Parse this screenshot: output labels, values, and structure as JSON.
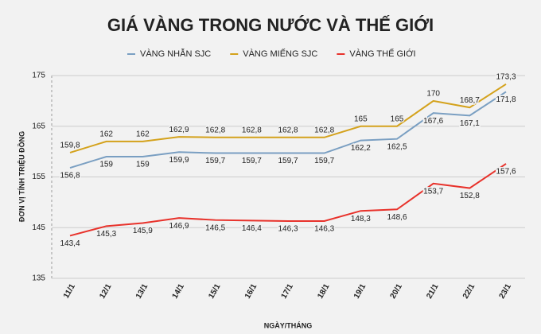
{
  "chart_data": {
    "type": "line",
    "title": "GIÁ VÀNG TRONG NƯỚC VÀ THẾ GIỚI",
    "y_label": "ĐƠN VỊ TÍNH TRIỆU ĐỒNG",
    "x_label": "NGÀY/THÁNG",
    "categories": [
      "11/1",
      "12/1",
      "13/1",
      "14/1",
      "15/1",
      "16/1",
      "17/1",
      "18/1",
      "19/1",
      "20/1",
      "21/1",
      "22/1",
      "23/1"
    ],
    "ylim": [
      135,
      175
    ],
    "yticks": [
      135,
      145,
      155,
      165,
      175
    ],
    "grid": true,
    "series": [
      {
        "name": "VÀNG NHẪN SJC",
        "color": "#7a9fc2",
        "label_side": "below",
        "values": [
          156.8,
          159,
          159,
          159.9,
          159.7,
          159.7,
          159.7,
          159.7,
          162.2,
          162.5,
          167.6,
          167.1,
          171.8
        ],
        "value_labels": [
          "156,8",
          "159",
          "159",
          "159,9",
          "159,7",
          "159,7",
          "159,7",
          "159,7",
          "162,2",
          "162,5",
          "167,6",
          "167,1",
          "171,8"
        ]
      },
      {
        "name": "VÀNG MIẾNG SJC",
        "color": "#d4a21c",
        "label_side": "above",
        "values": [
          159.8,
          162,
          162,
          162.9,
          162.8,
          162.8,
          162.8,
          162.8,
          165,
          165,
          170,
          168.7,
          173.3
        ],
        "value_labels": [
          "159,8",
          "162",
          "162",
          "162,9",
          "162,8",
          "162,8",
          "162,8",
          "162,8",
          "165",
          "165",
          "170",
          "168,7",
          "173,3"
        ]
      },
      {
        "name": "VÀNG THẾ GIỚI",
        "color": "#e8322b",
        "label_side": "below",
        "values": [
          143.4,
          145.3,
          145.9,
          146.9,
          146.5,
          146.4,
          146.3,
          146.3,
          148.3,
          148.6,
          153.7,
          152.8,
          157.6
        ],
        "value_labels": [
          "143,4",
          "145,3",
          "145,9",
          "146,9",
          "146,5",
          "146,4",
          "146,3",
          "146,3",
          "148,3",
          "148,6",
          "153,7",
          "152,8",
          "157,6"
        ]
      }
    ]
  }
}
